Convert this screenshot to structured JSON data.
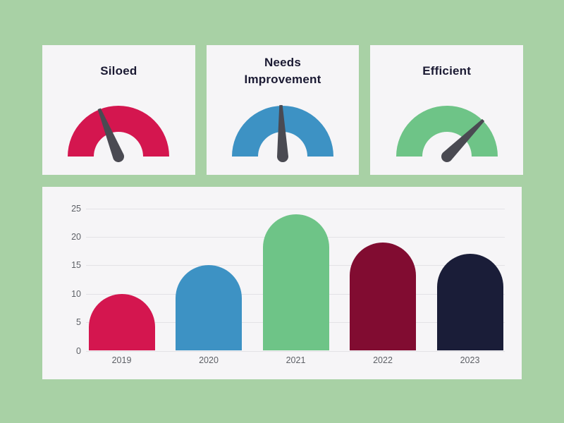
{
  "colors": {
    "background": "#a8d1a5",
    "card_background": "#f6f5f7",
    "title_text": "#1b1a33",
    "axis_text": "#5d6066",
    "gridline": "#e3e2e6",
    "needle": "#4a4a52",
    "crimson": "#d4164f",
    "blue": "#3d92c4",
    "green": "#6ec487",
    "maroon": "#810c31",
    "navy": "#1a1d38"
  },
  "chart_data": [
    {
      "type": "gauge",
      "title": "Siloed",
      "arc_color": "#d4164f",
      "needle_color": "#4a4a52",
      "needle_angle_deg": -22,
      "reading": "low",
      "shape": "semicircle-donut"
    },
    {
      "type": "gauge",
      "title": "Needs Improvement",
      "arc_color": "#3d92c4",
      "needle_color": "#4a4a52",
      "needle_angle_deg": -2,
      "reading": "middle",
      "shape": "semicircle-donut"
    },
    {
      "type": "gauge",
      "title": "Efficient",
      "arc_color": "#6ec487",
      "needle_color": "#4a4a52",
      "needle_angle_deg": 45,
      "reading": "high",
      "shape": "semicircle-donut"
    },
    {
      "type": "bar",
      "title": "",
      "categories": [
        "2019",
        "2020",
        "2021",
        "2022",
        "2023"
      ],
      "values": [
        10,
        15,
        24,
        19,
        17
      ],
      "bar_colors": [
        "#d4164f",
        "#3d92c4",
        "#6ec487",
        "#810c31",
        "#1a1d38"
      ],
      "xlabel": "",
      "ylabel": "",
      "ylim": [
        0,
        25
      ],
      "yticks": [
        0,
        5,
        10,
        15,
        20,
        25
      ],
      "grid": true,
      "legend": "none",
      "bar_style": "rounded-top"
    }
  ]
}
